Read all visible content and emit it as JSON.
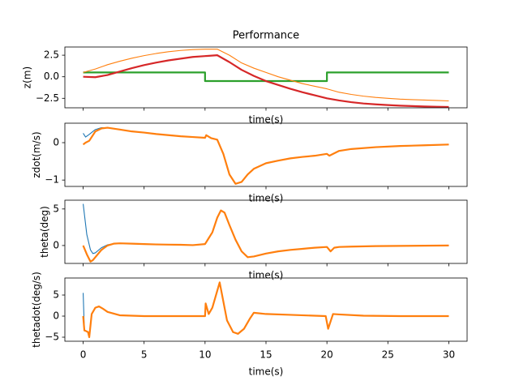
{
  "chart_data": [
    {
      "type": "line",
      "title": "Performance",
      "xlabel": "time(s)",
      "ylabel": "z(m)",
      "show_xtick_labels": false,
      "xlim": [
        -1.5,
        31.5
      ],
      "xticks": [
        0,
        5,
        10,
        15,
        20,
        25,
        30
      ],
      "ylim": [
        -3.6,
        3.45
      ],
      "yticks": [
        {
          "value": -2.5,
          "label": "−2.5"
        },
        {
          "value": 0,
          "label": "0.0"
        },
        {
          "value": 2.5,
          "label": "2.5"
        }
      ],
      "x": [
        0,
        1,
        2,
        3,
        4,
        5,
        6,
        7,
        8,
        9,
        10,
        10,
        11,
        12,
        13,
        14,
        15,
        16,
        17,
        18,
        19,
        20,
        20,
        21,
        22,
        23,
        24,
        25,
        26,
        27,
        28,
        29,
        30
      ],
      "series": [
        {
          "color": "#2ca02c",
          "linewidth": 2,
          "values": [
            0.5,
            0.5,
            0.5,
            0.5,
            0.5,
            0.5,
            0.5,
            0.5,
            0.5,
            0.5,
            0.5,
            -0.5,
            -0.5,
            -0.5,
            -0.5,
            -0.5,
            -0.5,
            -0.5,
            -0.5,
            -0.5,
            -0.5,
            -0.5,
            0.5,
            0.5,
            0.5,
            0.5,
            0.5,
            0.5,
            0.5,
            0.5,
            0.5,
            0.5,
            0.5
          ]
        },
        {
          "color": "#ff7f0e",
          "linewidth": 1,
          "values": [
            0.5,
            0.9,
            1.4,
            1.8,
            2.15,
            2.45,
            2.7,
            2.9,
            3.05,
            3.15,
            3.2,
            3.2,
            3.2,
            2.5,
            1.6,
            1.0,
            0.5,
            0.0,
            -0.4,
            -0.8,
            -1.1,
            -1.4,
            -1.4,
            -1.8,
            -2.05,
            -2.25,
            -2.4,
            -2.5,
            -2.6,
            -2.65,
            -2.7,
            -2.75,
            -2.8
          ]
        },
        {
          "color": "#d62728",
          "linewidth": 2,
          "values": [
            0,
            -0.05,
            0.2,
            0.6,
            1.0,
            1.35,
            1.65,
            1.9,
            2.1,
            2.3,
            2.4,
            2.4,
            2.5,
            1.7,
            0.8,
            0.1,
            -0.5,
            -0.95,
            -1.4,
            -1.8,
            -2.15,
            -2.5,
            -2.5,
            -2.75,
            -2.95,
            -3.1,
            -3.2,
            -3.28,
            -3.35,
            -3.4,
            -3.45,
            -3.48,
            -3.5
          ]
        }
      ]
    },
    {
      "type": "line",
      "xlabel": "time(s)",
      "ylabel": "zdot(m/s)",
      "show_xtick_labels": false,
      "xlim": [
        -1.5,
        31.5
      ],
      "xticks": [
        0,
        5,
        10,
        15,
        20,
        25,
        30
      ],
      "ylim": [
        -1.17,
        0.52
      ],
      "yticks": [
        {
          "value": -1,
          "label": "−1"
        },
        0
      ],
      "x": [
        0,
        0.2,
        0.5,
        1,
        1.5,
        2,
        3,
        4,
        5,
        6,
        7,
        8,
        9,
        10,
        10.1,
        10.5,
        11,
        11.5,
        12,
        12.5,
        13,
        13.5,
        14,
        15,
        16,
        17,
        18,
        19,
        20,
        20.2,
        21,
        22,
        24,
        26,
        28,
        30
      ],
      "series": [
        {
          "color": "#1f77b4",
          "linewidth": 1,
          "values": [
            0.25,
            0.15,
            0.22,
            0.35,
            0.4,
            0.4,
            0.35,
            0.3,
            0.27,
            0.23,
            0.2,
            0.17,
            0.15,
            0.13,
            0.2,
            0.12,
            0.08,
            -0.3,
            -0.85,
            -1.1,
            -1.05,
            -0.85,
            -0.7,
            -0.55,
            -0.48,
            -0.42,
            -0.38,
            -0.35,
            -0.3,
            -0.35,
            -0.22,
            -0.17,
            -0.12,
            -0.09,
            -0.07,
            -0.05
          ]
        },
        {
          "color": "#ff7f0e",
          "linewidth": 2,
          "values": [
            -0.05,
            0.0,
            0.05,
            0.3,
            0.38,
            0.4,
            0.35,
            0.3,
            0.27,
            0.23,
            0.2,
            0.17,
            0.15,
            0.13,
            0.2,
            0.12,
            0.08,
            -0.3,
            -0.85,
            -1.1,
            -1.05,
            -0.85,
            -0.7,
            -0.55,
            -0.48,
            -0.42,
            -0.38,
            -0.35,
            -0.3,
            -0.35,
            -0.22,
            -0.17,
            -0.12,
            -0.09,
            -0.07,
            -0.05
          ]
        }
      ]
    },
    {
      "type": "line",
      "xlabel": "time(s)",
      "ylabel": "theta(deg)",
      "show_xtick_labels": false,
      "xlim": [
        -1.5,
        31.5
      ],
      "xticks": [
        0,
        5,
        10,
        15,
        20,
        25,
        30
      ],
      "ylim": [
        -2.45,
        6.2
      ],
      "yticks": [
        0,
        5
      ],
      "x": [
        0,
        0.3,
        0.6,
        0.8,
        1,
        1.5,
        2,
        2.5,
        3,
        4,
        5,
        6,
        7,
        8,
        9,
        10,
        10.3,
        10.6,
        11,
        11.3,
        11.6,
        12,
        12.5,
        13,
        13.5,
        14,
        15,
        16,
        17,
        18,
        19,
        20,
        20.3,
        20.6,
        21,
        22,
        24,
        26,
        28,
        30
      ],
      "series": [
        {
          "color": "#1f77b4",
          "linewidth": 1,
          "values": [
            5.7,
            1.5,
            -0.6,
            -1.1,
            -1.0,
            -0.3,
            0.1,
            0.25,
            0.3,
            0.25,
            0.2,
            0.15,
            0.12,
            0.1,
            0.05,
            0.2,
            1.0,
            1.8,
            3.8,
            4.8,
            4.5,
            2.8,
            0.8,
            -0.8,
            -1.6,
            -1.5,
            -1.1,
            -0.8,
            -0.6,
            -0.45,
            -0.3,
            -0.2,
            -0.8,
            -0.3,
            -0.2,
            -0.15,
            -0.08,
            -0.05,
            -0.02,
            0.0
          ]
        },
        {
          "color": "#ff7f0e",
          "linewidth": 2,
          "values": [
            0,
            -1.2,
            -2.2,
            -2.0,
            -1.6,
            -0.6,
            0.0,
            0.25,
            0.3,
            0.25,
            0.2,
            0.15,
            0.12,
            0.1,
            0.05,
            0.2,
            1.0,
            1.8,
            3.8,
            4.8,
            4.5,
            2.8,
            0.8,
            -0.8,
            -1.6,
            -1.5,
            -1.1,
            -0.8,
            -0.6,
            -0.45,
            -0.3,
            -0.2,
            -0.8,
            -0.3,
            -0.2,
            -0.15,
            -0.08,
            -0.05,
            -0.02,
            0.0
          ]
        }
      ]
    },
    {
      "type": "line",
      "xlabel": "time(s)",
      "ylabel": "thetadot(deg/s)",
      "show_xtick_labels": true,
      "xlim": [
        -1.5,
        31.5
      ],
      "xticks": [
        0,
        5,
        10,
        15,
        20,
        25,
        30
      ],
      "ylim": [
        -5.96,
        9.04
      ],
      "yticks": [
        {
          "value": -5,
          "label": "−5"
        },
        0,
        5
      ],
      "x": [
        0,
        0.1,
        0.2,
        0.4,
        0.5,
        0.7,
        1,
        1.3,
        1.6,
        2,
        3,
        5,
        8,
        10,
        10.05,
        10.3,
        10.6,
        11,
        11.2,
        11.4,
        11.8,
        12.3,
        12.7,
        13.2,
        13.7,
        14,
        15,
        17,
        19.9,
        20.1,
        20.5,
        21,
        23,
        26,
        30
      ],
      "series": [
        {
          "color": "#1f77b4",
          "linewidth": 1,
          "values": [
            5.5,
            -3.4,
            -3.5,
            -3.8,
            -5.0,
            0.5,
            2.0,
            2.3,
            1.8,
            1.0,
            0.2,
            0,
            0,
            0,
            3.0,
            0.5,
            2.0,
            6.0,
            8.0,
            5.0,
            -1.0,
            -3.8,
            -4.2,
            -3.0,
            -0.5,
            0.8,
            0.5,
            0.3,
            0,
            -3.0,
            0.5,
            0.4,
            0.1,
            0,
            0
          ]
        },
        {
          "color": "#ff7f0e",
          "linewidth": 2,
          "values": [
            0,
            -3.4,
            -3.5,
            -3.8,
            -5.0,
            0.5,
            2.0,
            2.3,
            1.8,
            1.0,
            0.2,
            0,
            0,
            0,
            3.0,
            0.5,
            2.0,
            6.0,
            8.0,
            5.0,
            -1.0,
            -3.8,
            -4.2,
            -3.0,
            -0.5,
            0.8,
            0.5,
            0.3,
            0,
            -3.0,
            0.5,
            0.4,
            0.1,
            0,
            0
          ]
        }
      ]
    }
  ]
}
